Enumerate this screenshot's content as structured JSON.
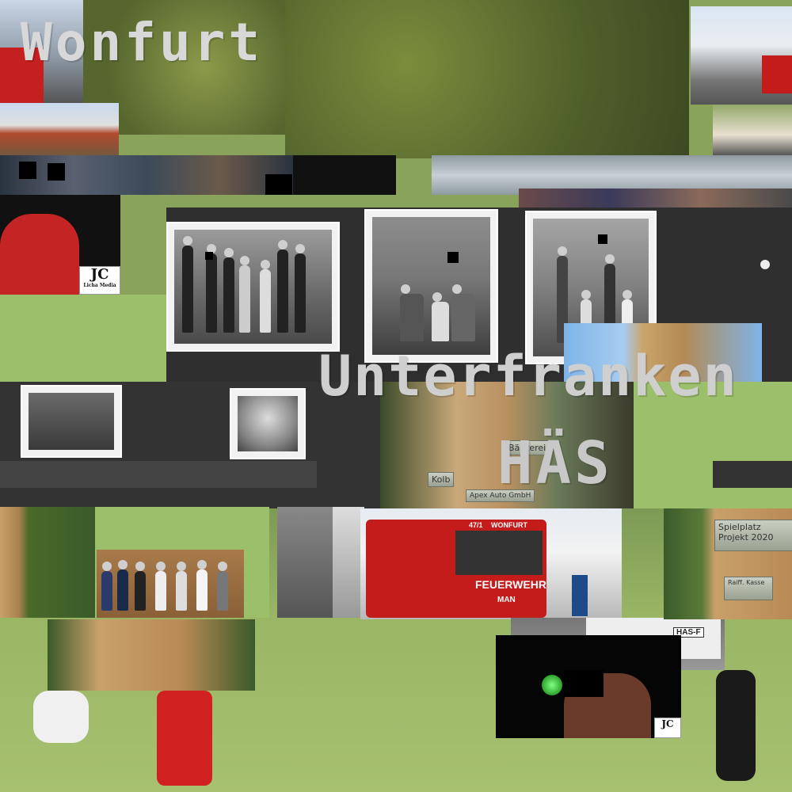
{
  "overlay_text": {
    "title_top": "Wonfurt",
    "title_mid": "Unterfranken",
    "title_code": "HÄS"
  },
  "truck": {
    "label": "FEUERWEHR",
    "unit": "47/1",
    "town": "WONFURT",
    "brand": "MAN",
    "plate": "HAS-F"
  },
  "plaques": {
    "p1": "Bäckerei",
    "p2": "Kolb",
    "p3": "Apex Auto GmbH",
    "p4": "Spielplatz Projekt 2020",
    "p5": "Raiff. Kasse"
  },
  "logos": {
    "jc_text": "JC",
    "jc_sub": "Licha Media"
  },
  "colors": {
    "grass": "#8aa35a",
    "album_black": "#2e2e2e",
    "fire_red": "#c41b1b",
    "jersey_red": "#d02020"
  }
}
